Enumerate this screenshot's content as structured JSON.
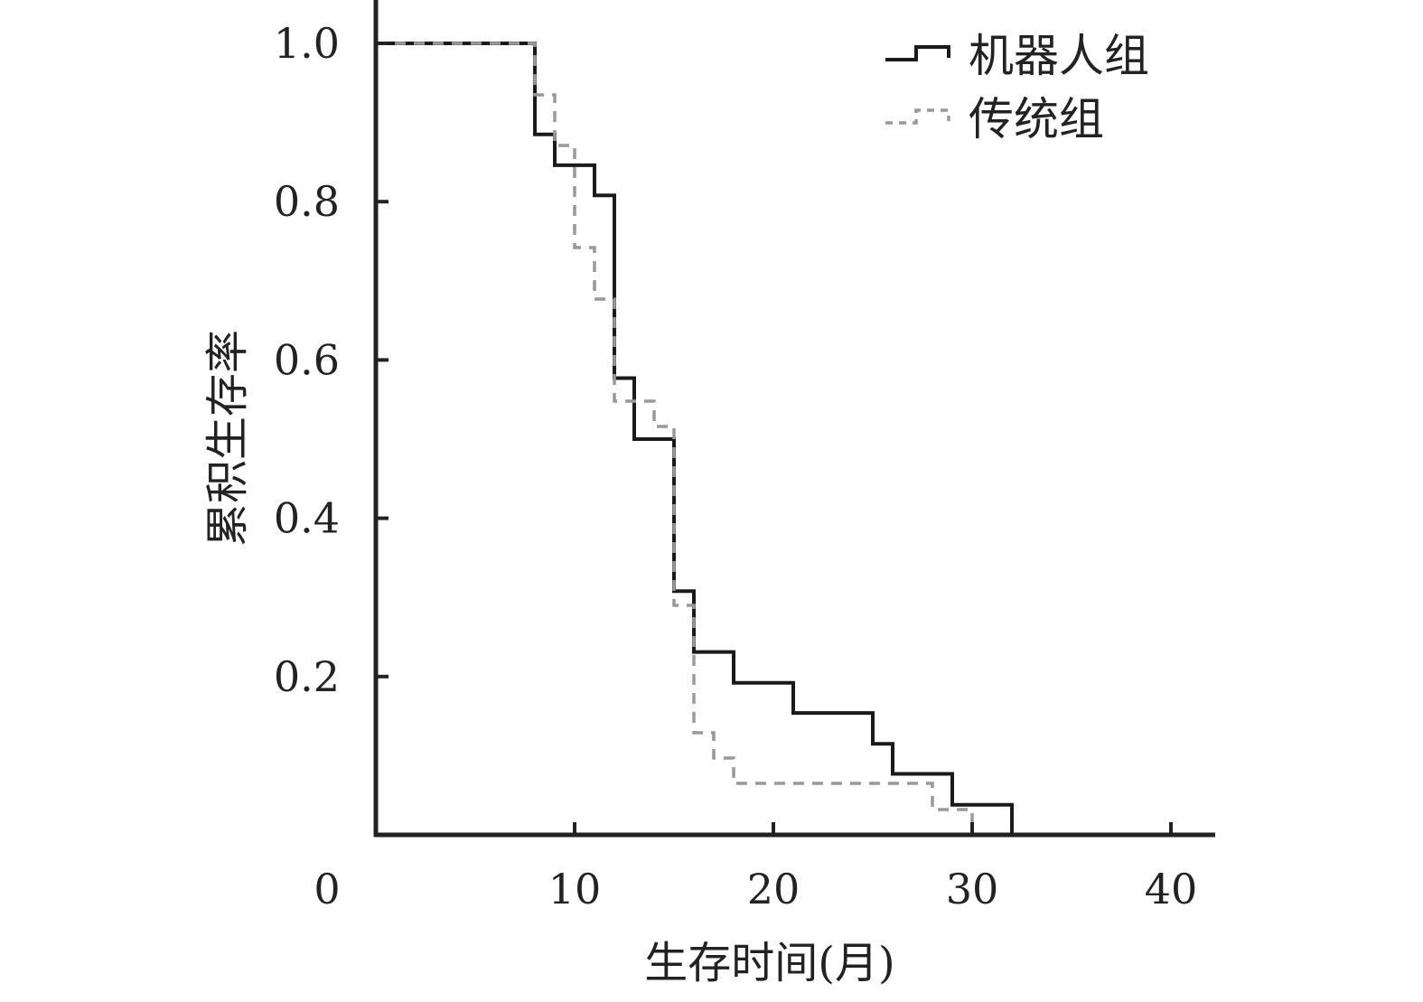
{
  "chart_data": {
    "type": "line",
    "step": true,
    "title": "",
    "xlabel": "生存时间(月)",
    "ylabel": "累积生存率",
    "xlim": [
      0,
      42
    ],
    "ylim": [
      0,
      1.05
    ],
    "xticks": [
      10,
      20,
      30,
      40
    ],
    "yticks": [
      0.2,
      0.4,
      0.6,
      0.8,
      1.0
    ],
    "origin_label": "0",
    "grid": false,
    "legend": "top-right",
    "series": [
      {
        "name": "机器人组",
        "color": "#1a1a1a",
        "dash": "solid",
        "x": [
          0,
          8,
          9,
          11,
          12,
          13,
          15,
          16,
          18,
          21,
          25,
          26,
          29,
          32
        ],
        "y": [
          1.0,
          0.885,
          0.846,
          0.808,
          0.577,
          0.5,
          0.308,
          0.231,
          0.192,
          0.154,
          0.115,
          0.077,
          0.038,
          0.0
        ]
      },
      {
        "name": "传统组",
        "color": "#999999",
        "dash": "dashed",
        "x": [
          0,
          8,
          9,
          10,
          11,
          12,
          14,
          15,
          16,
          17,
          18,
          28,
          29,
          30
        ],
        "y": [
          1.0,
          0.935,
          0.871,
          0.742,
          0.677,
          0.548,
          0.516,
          0.29,
          0.129,
          0.097,
          0.065,
          0.032,
          0.032,
          0.0
        ]
      }
    ]
  }
}
